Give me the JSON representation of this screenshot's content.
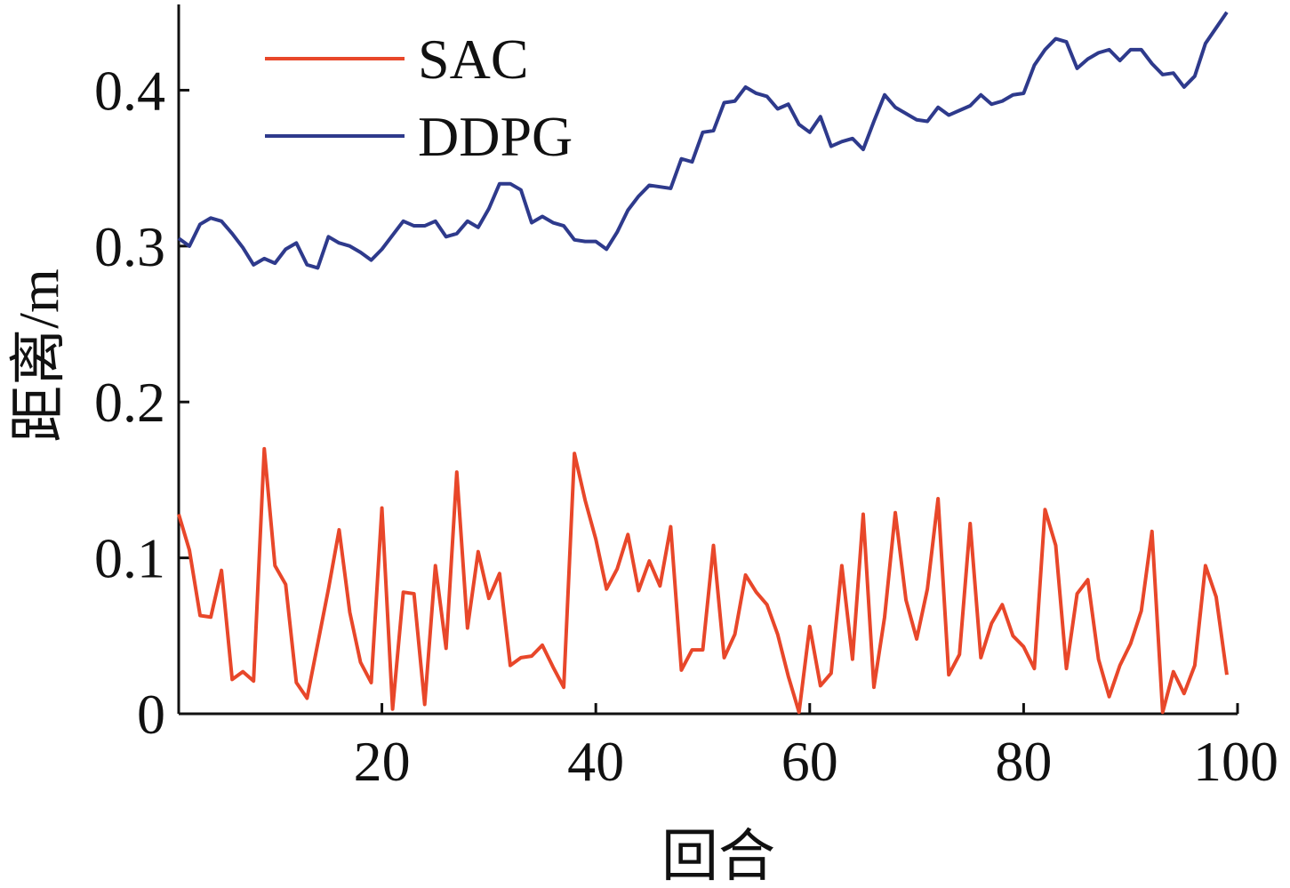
{
  "chart_data": {
    "type": "line",
    "x": [
      1,
      2,
      3,
      4,
      5,
      6,
      7,
      8,
      9,
      10,
      11,
      12,
      13,
      14,
      15,
      16,
      17,
      18,
      19,
      20,
      21,
      22,
      23,
      24,
      25,
      26,
      27,
      28,
      29,
      30,
      31,
      32,
      33,
      34,
      35,
      36,
      37,
      38,
      39,
      40,
      41,
      42,
      43,
      44,
      45,
      46,
      47,
      48,
      49,
      50,
      51,
      52,
      53,
      54,
      55,
      56,
      57,
      58,
      59,
      60,
      61,
      62,
      63,
      64,
      65,
      66,
      67,
      68,
      69,
      70,
      71,
      72,
      73,
      74,
      75,
      76,
      77,
      78,
      79,
      80,
      81,
      82,
      83,
      84,
      85,
      86,
      87,
      88,
      89,
      90,
      91,
      92,
      93,
      94,
      95,
      96,
      97,
      98,
      99
    ],
    "series": [
      {
        "name": "SAC",
        "color": "#e8472a",
        "values": [
          0.128,
          0.105,
          0.063,
          0.062,
          0.092,
          0.022,
          0.027,
          0.021,
          0.17,
          0.095,
          0.083,
          0.02,
          0.01,
          0.045,
          0.08,
          0.118,
          0.065,
          0.033,
          0.02,
          0.132,
          0.003,
          0.078,
          0.077,
          0.006,
          0.095,
          0.042,
          0.155,
          0.055,
          0.104,
          0.074,
          0.09,
          0.031,
          0.036,
          0.037,
          0.044,
          0.03,
          0.017,
          0.167,
          0.137,
          0.112,
          0.08,
          0.093,
          0.115,
          0.079,
          0.098,
          0.082,
          0.12,
          0.028,
          0.041,
          0.041,
          0.108,
          0.036,
          0.051,
          0.089,
          0.078,
          0.07,
          0.051,
          0.024,
          0.001,
          0.056,
          0.018,
          0.026,
          0.095,
          0.035,
          0.128,
          0.017,
          0.062,
          0.129,
          0.073,
          0.048,
          0.08,
          0.138,
          0.025,
          0.038,
          0.122,
          0.036,
          0.058,
          0.07,
          0.05,
          0.043,
          0.029,
          0.131,
          0.108,
          0.029,
          0.077,
          0.086,
          0.035,
          0.011,
          0.031,
          0.045,
          0.066,
          0.117,
          0.001,
          0.027,
          0.013,
          0.031,
          0.095,
          0.075,
          0.025
        ]
      },
      {
        "name": "DDPG",
        "color": "#2e3a8c",
        "values": [
          0.305,
          0.3,
          0.314,
          0.318,
          0.316,
          0.308,
          0.299,
          0.288,
          0.292,
          0.289,
          0.298,
          0.302,
          0.288,
          0.286,
          0.306,
          0.302,
          0.3,
          0.296,
          0.291,
          0.298,
          0.307,
          0.316,
          0.313,
          0.313,
          0.316,
          0.306,
          0.308,
          0.316,
          0.312,
          0.324,
          0.34,
          0.34,
          0.336,
          0.315,
          0.319,
          0.315,
          0.313,
          0.304,
          0.303,
          0.303,
          0.298,
          0.309,
          0.323,
          0.332,
          0.339,
          0.338,
          0.337,
          0.356,
          0.354,
          0.373,
          0.374,
          0.392,
          0.393,
          0.402,
          0.398,
          0.396,
          0.388,
          0.391,
          0.378,
          0.373,
          0.383,
          0.364,
          0.367,
          0.369,
          0.362,
          0.38,
          0.397,
          0.389,
          0.385,
          0.381,
          0.38,
          0.389,
          0.384,
          0.387,
          0.39,
          0.397,
          0.391,
          0.393,
          0.397,
          0.398,
          0.416,
          0.426,
          0.433,
          0.431,
          0.414,
          0.42,
          0.424,
          0.426,
          0.419,
          0.426,
          0.426,
          0.417,
          0.41,
          0.411,
          0.402,
          0.409,
          0.43,
          0.44,
          0.45
        ]
      }
    ],
    "x_label": "回合",
    "y_label": "距离/m",
    "xlim": [
      1,
      100
    ],
    "ylim": [
      0,
      0.455
    ],
    "xticks": [
      20,
      40,
      60,
      80,
      100
    ],
    "yticks": [
      0,
      0.1,
      0.2,
      0.3,
      0.4
    ],
    "legend": "upper left",
    "grid": false
  }
}
